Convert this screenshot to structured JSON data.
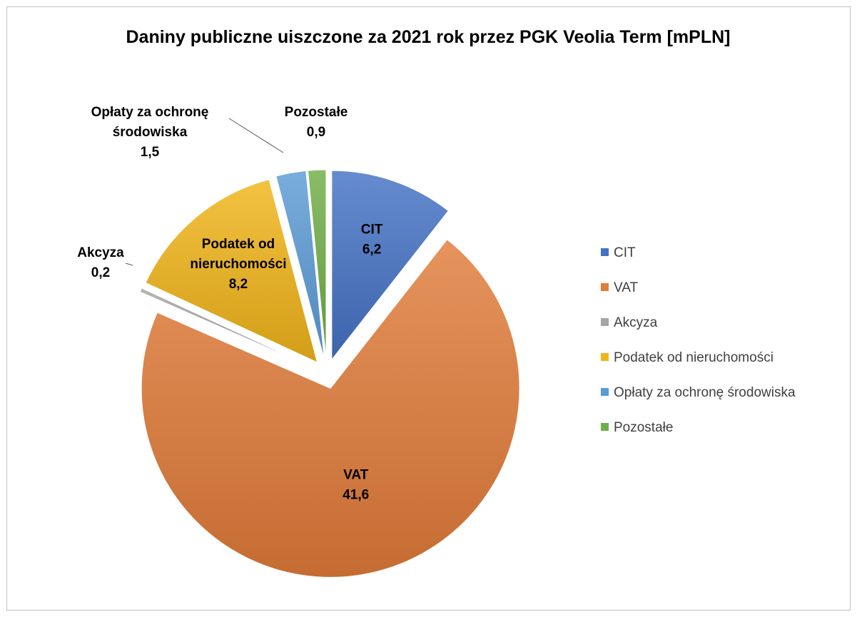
{
  "chart_data": {
    "type": "pie",
    "title": "Daniny publiczne  uiszczone za 2021 rok przez PGK Veolia Term [mPLN]",
    "legend_position": "right",
    "exploded": true,
    "slices": [
      {
        "label": "CIT",
        "label_lines": [
          "CIT"
        ],
        "value": 6.2,
        "value_text": "6,2",
        "color": "#4472c4",
        "label_mode": "inside"
      },
      {
        "label": "VAT",
        "label_lines": [
          "VAT"
        ],
        "value": 41.6,
        "value_text": "41,6",
        "color": "#e07b39",
        "label_mode": "inside"
      },
      {
        "label": "Akcyza",
        "label_lines": [
          "Akcyza"
        ],
        "value": 0.2,
        "value_text": "0,2",
        "color": "#a5a5a5",
        "label_mode": "leader"
      },
      {
        "label": "Podatek od nieruchomości",
        "label_lines": [
          "Podatek od",
          "nieruchomości"
        ],
        "value": 8.2,
        "value_text": "8,2",
        "color": "#f0b419",
        "label_mode": "inside"
      },
      {
        "label": "Opłaty za ochronę środowiska",
        "label_lines": [
          "Opłaty za ochronę",
          "środowiska"
        ],
        "value": 1.5,
        "value_text": "1,5",
        "color": "#5b9bd5",
        "label_mode": "leader"
      },
      {
        "label": "Pozostałe",
        "label_lines": [
          "Pozostałe"
        ],
        "value": 0.9,
        "value_text": "0,9",
        "color": "#70ad47",
        "label_mode": "leader"
      }
    ]
  }
}
